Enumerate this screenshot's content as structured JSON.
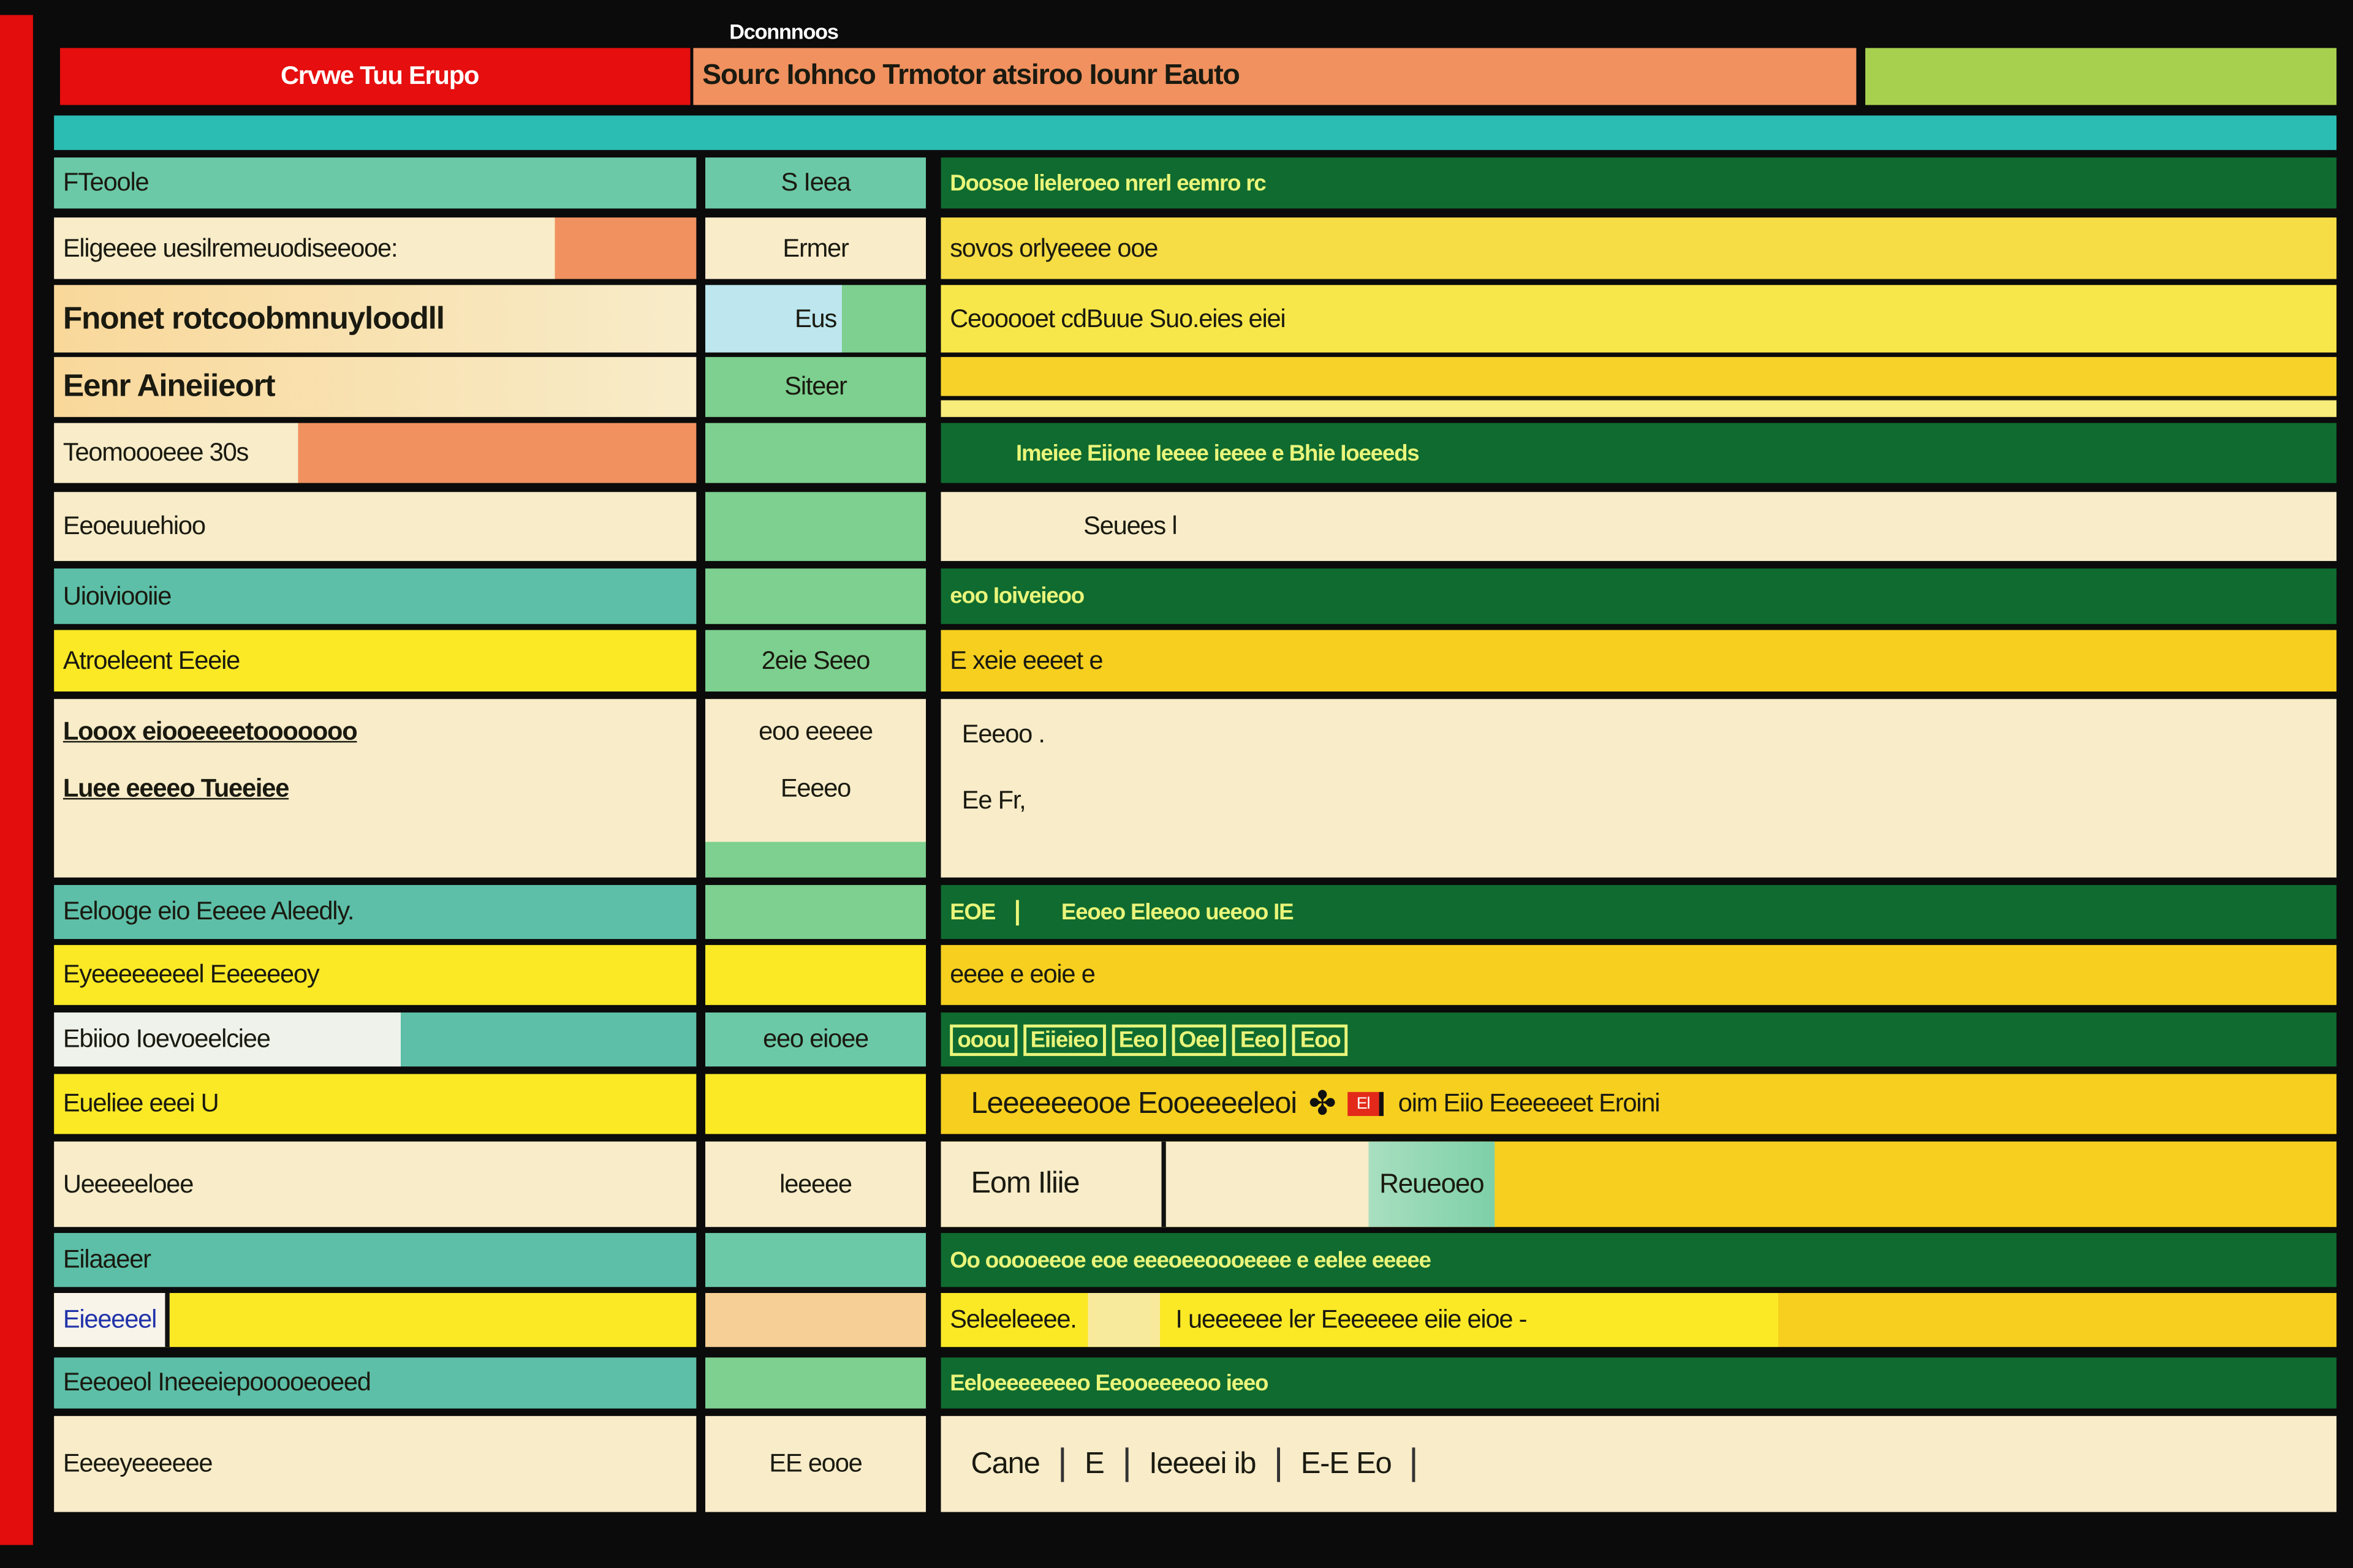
{
  "window": {
    "title": "Dconnnoos"
  },
  "header": {
    "app_label": "Crvwe Tuu Erupo",
    "subtitle": "Sourc Iohnco Trmotor atsiroo Iounr Eauto"
  },
  "colors": {
    "red": "#e30d0d",
    "orange": "#f0915f",
    "lime": "#a8d04f",
    "teal": "#2bbcb4",
    "mint": "#6cc9a8",
    "green": "#7dd08f",
    "dark_green": "#0f6b2f",
    "cream": "#f8ecc9",
    "yellow": "#fbe926",
    "gold": "#f6cf1f"
  },
  "rows": [
    {
      "c1": "FTeoole",
      "c2": "S Ieea",
      "c3": "Doosoe lieleroeo nrerl eemro rc"
    },
    {
      "c1": "Eligeeee uesilremeuodiseeooe:",
      "c2": "Ermer",
      "c3": "sovos orlyeeee ooe"
    },
    {
      "c1": "Fnonet rotcoobmnuyloodll",
      "c2": "Eus",
      "c3": "Ceooooet cdBuue Suo.eies",
      "c3b": "eiei"
    },
    {
      "c1": "Eenr Aineiieort",
      "c2": "Siteer",
      "c3": ""
    },
    {
      "c1": "Teomoooeee 30s",
      "c2": "",
      "c3": "Imeiee Eiione Ieeee ieeee e Bhie Ioeeeds"
    },
    {
      "c1": "Eeoeuuehioo",
      "c2": "",
      "c3": "Seuees l"
    },
    {
      "c1": "Uioiviooiie",
      "c2": "",
      "c3": "eoo Ioiveieoo"
    },
    {
      "c1": "Atroeleent Eeeie",
      "c2": "2eie Seeo",
      "c3": "E xeie eeeet e"
    },
    {
      "c1": "Looox eiooeeeetooooooo",
      "c1b": "Luee eeeeo Tueeiee",
      "c2": "eoo eeeee",
      "c2b": "Eeeeo",
      "c3": "Eeeoo .",
      "c3b": "Ee Fr,"
    },
    {
      "c1": "Eelooge eio Eeeee Aleedly.",
      "c2": "",
      "c3": "EOE",
      "c3b": "Eeoeo Eleeoo ueeoo IE"
    },
    {
      "c1": "Eyeeeeeeeel Eeeeeeoy",
      "c2": "",
      "c3": "eeee e eoie e"
    },
    {
      "c1": "Ebiioo Ioevoeelciee",
      "c2": "eeo eioee",
      "tags": [
        "ooou",
        "Eiieieo",
        "Eeo",
        "Oee",
        "Eeo",
        "Eoo"
      ]
    },
    {
      "c1": "Eueliee eeei U",
      "c2": "",
      "c3": "Leeeeeeooe Eooeeeeleoi",
      "badge": "El",
      "c3b": "oim Eiio Eeeeeeet Eroini"
    },
    {
      "c1": "Ueeeeeloee",
      "c2": "leeeee",
      "c3": "Eom Iliie",
      "button": "Reueoeo"
    },
    {
      "c1": "Eilaaeer",
      "c2": "",
      "c3": "Oo ooooeeoe eoe eeeoeeoooeeee e eelee eeeee"
    },
    {
      "c1": "Eieeeeel",
      "c2": "",
      "c3": "Seleeleeee.",
      "c3b": "I ueeeeee ler Eeeeeee eiie eioe -"
    },
    {
      "c1": "Eeeoeol Ineeeiepooooeoeed",
      "c2": "",
      "c3": "Eeloeeeeeeeo Eeooeeeeoo ieeo"
    },
    {
      "c1": "Eeeeyeeeeee",
      "c2": "EE eooe",
      "segments": [
        "Cane",
        "E",
        "Ieeeei ib",
        "E-E Eo"
      ]
    }
  ]
}
